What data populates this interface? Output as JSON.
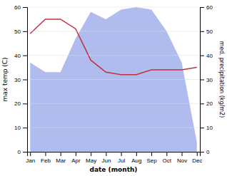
{
  "chart_data": {
    "type": "line",
    "categories": [
      "Jan",
      "Feb",
      "Mar",
      "Apr",
      "May",
      "Jun",
      "Jul",
      "Aug",
      "Sep",
      "Oct",
      "Nov",
      "Dec"
    ],
    "series": [
      {
        "type": "area",
        "color": "#b0bcee",
        "values": [
          37,
          33,
          33,
          47,
          58,
          55,
          59,
          60,
          59,
          50,
          37,
          4
        ]
      },
      {
        "type": "line",
        "color": "#c03040",
        "axis": "y2",
        "values": [
          49,
          55,
          55,
          51,
          38,
          33,
          32,
          32,
          34,
          34,
          34,
          35
        ]
      }
    ],
    "xlabel": "date (month)",
    "ylabel": "max temp (C)",
    "y2label": "med. precipitation (kg/m2)",
    "ylim": [
      0,
      60
    ],
    "yticks": [
      0,
      10,
      20,
      30,
      40,
      50,
      60
    ],
    "y2lim": [
      0,
      60
    ],
    "y2ticks": [
      0,
      10,
      20,
      30,
      40,
      50,
      60
    ],
    "grid": true
  }
}
